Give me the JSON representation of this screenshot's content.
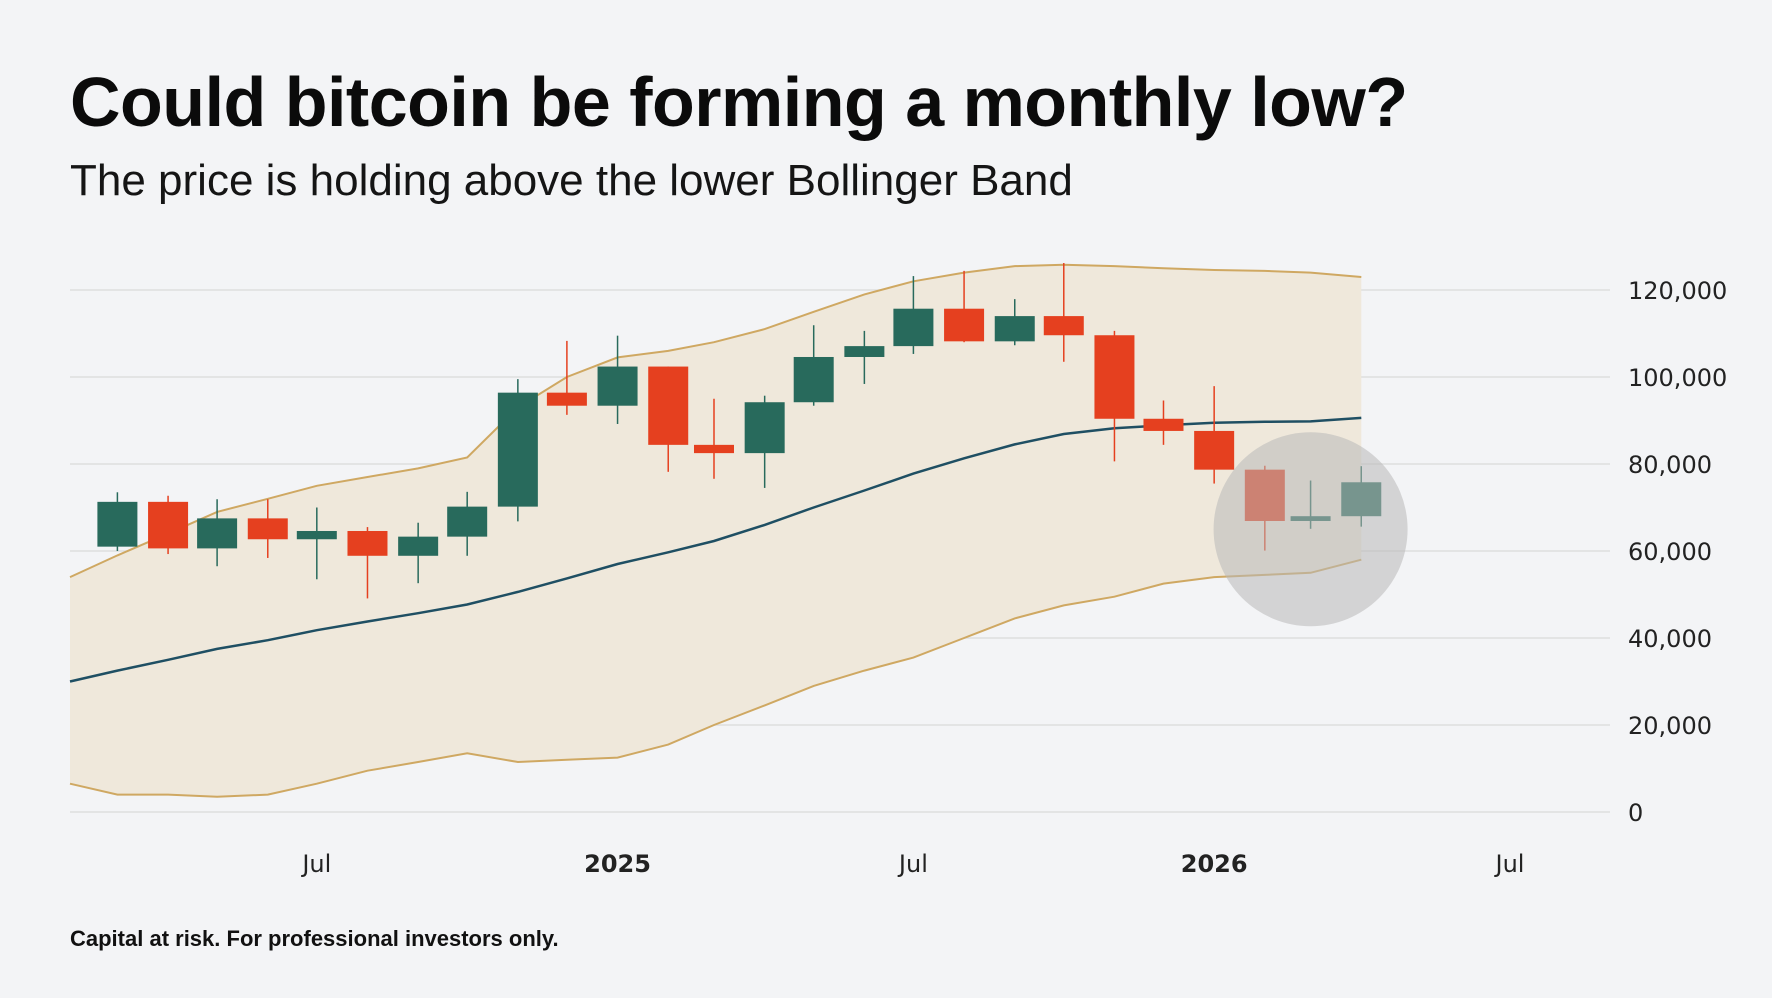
{
  "title": "Could bitcoin be forming a monthly low?",
  "subtitle": "The price is holding above the lower Bollinger Band",
  "footnote": "Capital at risk. For professional investors only.",
  "chart_data": {
    "type": "candlestick",
    "series_name": "",
    "colors": {
      "up": "#286a5c",
      "down": "#e5401f",
      "band_fill": "#efe8db",
      "band_line": "#cfa862",
      "middle_line": "#1f4f63",
      "grid": "#dedede",
      "highlight": "#b8b8b8"
    },
    "ylim": [
      0,
      126000
    ],
    "y_ticks": [
      0,
      20000,
      40000,
      60000,
      80000,
      100000,
      120000
    ],
    "y_tick_labels": [
      "0",
      "20,000",
      "40,000",
      "60,000",
      "80,000",
      "100,000",
      "120,000"
    ],
    "xlim": [
      "2024-02-01",
      "2026-07-01"
    ],
    "x_ticks": [
      {
        "date": "2024-07-01",
        "label": "Jul",
        "bold": false
      },
      {
        "date": "2025-01-01",
        "label": "2025",
        "bold": true
      },
      {
        "date": "2025-07-01",
        "label": "Jul",
        "bold": false
      },
      {
        "date": "2026-01-01",
        "label": "2026",
        "bold": true
      },
      {
        "date": "2026-07-01",
        "label": "Jul",
        "bold": false
      }
    ],
    "grid": "horizontal",
    "legend": "none",
    "candles": [
      {
        "date": "2024-03-01",
        "open": 61000,
        "high": 73500,
        "low": 60000,
        "close": 71300
      },
      {
        "date": "2024-04-01",
        "open": 71300,
        "high": 72700,
        "low": 59300,
        "close": 60600
      },
      {
        "date": "2024-05-01",
        "open": 60600,
        "high": 71900,
        "low": 56500,
        "close": 67500
      },
      {
        "date": "2024-06-01",
        "open": 67500,
        "high": 71900,
        "low": 58400,
        "close": 62700
      },
      {
        "date": "2024-07-01",
        "open": 62700,
        "high": 70000,
        "low": 53500,
        "close": 64600
      },
      {
        "date": "2024-08-01",
        "open": 64600,
        "high": 65500,
        "low": 49100,
        "close": 58900
      },
      {
        "date": "2024-09-01",
        "open": 58900,
        "high": 66500,
        "low": 52600,
        "close": 63300
      },
      {
        "date": "2024-10-01",
        "open": 63300,
        "high": 73600,
        "low": 58900,
        "close": 70200
      },
      {
        "date": "2024-11-01",
        "open": 70200,
        "high": 99500,
        "low": 66800,
        "close": 96400
      },
      {
        "date": "2024-12-01",
        "open": 96400,
        "high": 108300,
        "low": 91300,
        "close": 93400
      },
      {
        "date": "2025-01-01",
        "open": 93400,
        "high": 109500,
        "low": 89200,
        "close": 102400
      },
      {
        "date": "2025-02-01",
        "open": 102400,
        "high": 102400,
        "low": 78200,
        "close": 84400
      },
      {
        "date": "2025-03-01",
        "open": 84400,
        "high": 95000,
        "low": 76600,
        "close": 82500
      },
      {
        "date": "2025-04-01",
        "open": 82500,
        "high": 95700,
        "low": 74500,
        "close": 94200
      },
      {
        "date": "2025-05-01",
        "open": 94200,
        "high": 111900,
        "low": 93400,
        "close": 104600
      },
      {
        "date": "2025-06-01",
        "open": 104600,
        "high": 110600,
        "low": 98400,
        "close": 107100
      },
      {
        "date": "2025-07-01",
        "open": 107100,
        "high": 123200,
        "low": 105300,
        "close": 115700
      },
      {
        "date": "2025-08-01",
        "open": 115700,
        "high": 124400,
        "low": 108000,
        "close": 108200
      },
      {
        "date": "2025-09-01",
        "open": 108200,
        "high": 117900,
        "low": 107300,
        "close": 114000
      },
      {
        "date": "2025-10-01",
        "open": 114000,
        "high": 126200,
        "low": 103500,
        "close": 109600
      },
      {
        "date": "2025-11-01",
        "open": 109600,
        "high": 110600,
        "low": 80600,
        "close": 90400
      },
      {
        "date": "2025-12-01",
        "open": 90400,
        "high": 94600,
        "low": 84400,
        "close": 87600
      },
      {
        "date": "2026-01-01",
        "open": 87600,
        "high": 97900,
        "low": 75500,
        "close": 78700
      },
      {
        "date": "2026-02-01",
        "open": 78700,
        "high": 79600,
        "low": 60100,
        "close": 66900
      },
      {
        "date": "2026-03-01",
        "open": 66900,
        "high": 76200,
        "low": 65100,
        "close": 68000
      },
      {
        "date": "2026-04-01",
        "open": 68000,
        "high": 79500,
        "low": 65600,
        "close": 75800
      }
    ],
    "bollinger": {
      "dates": [
        "2024-02-01",
        "2024-03-01",
        "2024-04-01",
        "2024-05-01",
        "2024-06-01",
        "2024-07-01",
        "2024-08-01",
        "2024-09-01",
        "2024-10-01",
        "2024-11-01",
        "2024-12-01",
        "2025-01-01",
        "2025-02-01",
        "2025-03-01",
        "2025-04-01",
        "2025-05-01",
        "2025-06-01",
        "2025-07-01",
        "2025-08-01",
        "2025-09-01",
        "2025-10-01",
        "2025-11-01",
        "2025-12-01",
        "2026-01-01",
        "2026-02-01",
        "2026-03-01",
        "2026-04-01"
      ],
      "upper": [
        54000,
        59000,
        64000,
        69000,
        72000,
        75000,
        77000,
        79000,
        81500,
        93000,
        100000,
        104500,
        106000,
        108000,
        111000,
        115000,
        119000,
        122000,
        124000,
        125500,
        125800,
        125500,
        125000,
        124600,
        124400,
        124000,
        123000
      ],
      "middle": [
        30000,
        32500,
        35000,
        37500,
        39500,
        41800,
        43800,
        45700,
        47700,
        50600,
        53700,
        57000,
        59700,
        62300,
        66000,
        70000,
        73900,
        77800,
        81300,
        84500,
        86900,
        88200,
        88900,
        89500,
        89700,
        89800,
        90600
      ],
      "lower": [
        6500,
        4000,
        4000,
        3500,
        4000,
        6500,
        9500,
        11500,
        13500,
        11500,
        12000,
        12500,
        15500,
        20000,
        24500,
        29000,
        32500,
        35500,
        40000,
        44500,
        47500,
        49500,
        52500,
        54000,
        54500,
        55000,
        58000
      ]
    },
    "highlight_circle": {
      "date": "2026-03-01",
      "value": 65000
    }
  }
}
